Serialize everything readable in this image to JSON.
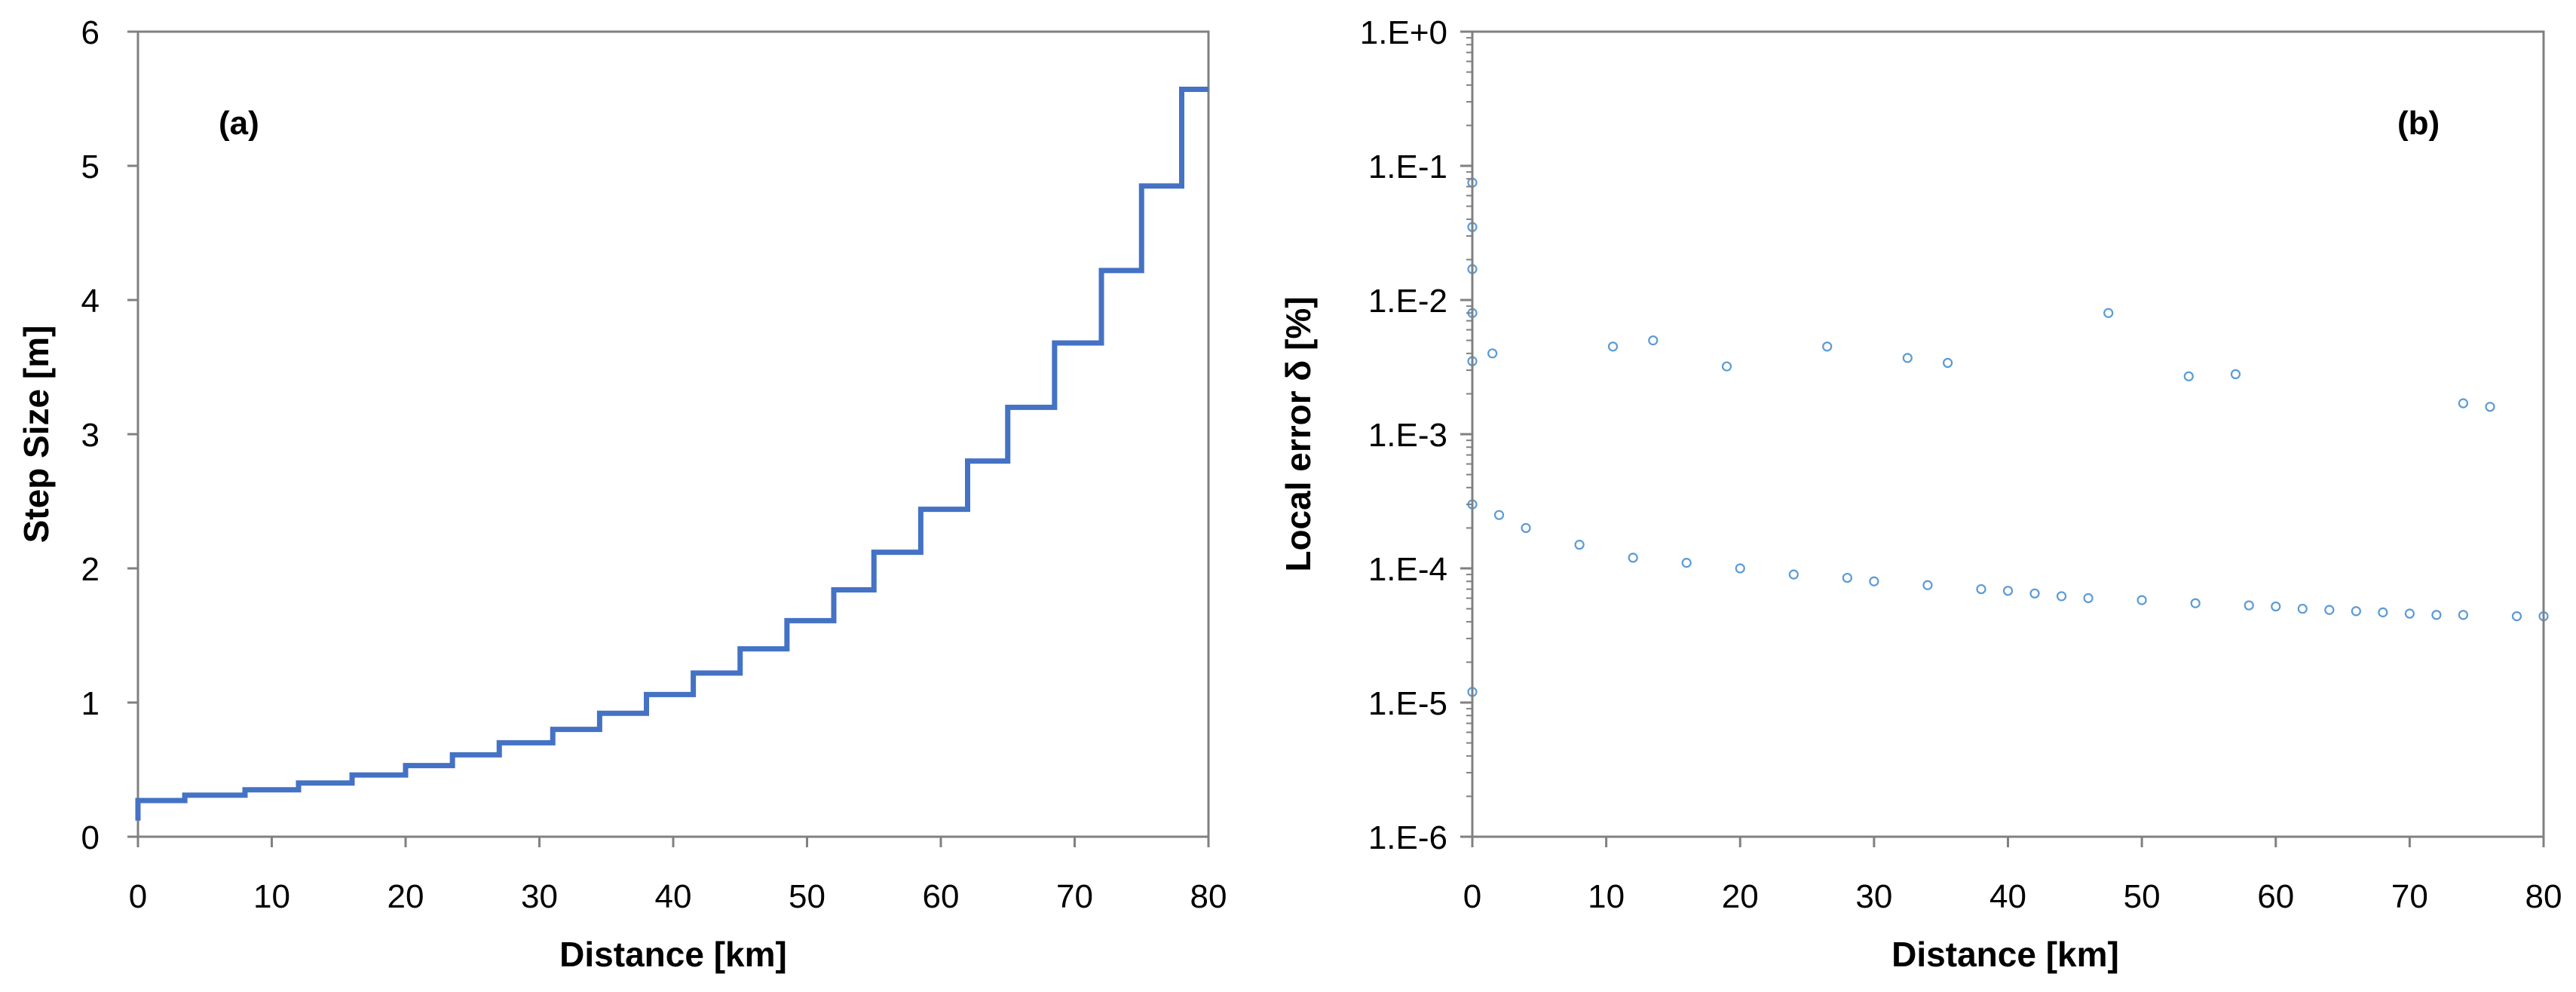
{
  "colors": {
    "line": "#4472C4",
    "marker": "#5B9BD5",
    "axis": "#808080"
  },
  "chart_data": [
    {
      "type": "line",
      "panel_label": "(a)",
      "xlabel": "Distance [km]",
      "ylabel": "Step Size [m]",
      "xlim": [
        0,
        80
      ],
      "ylim": [
        0,
        6
      ],
      "xticks": [
        0,
        10,
        20,
        30,
        40,
        50,
        60,
        70,
        80
      ],
      "yticks": [
        0,
        1,
        2,
        3,
        4,
        5,
        6
      ],
      "xtick_labels": [
        "0",
        "10",
        "20",
        "30",
        "40",
        "50",
        "60",
        "70",
        "80"
      ],
      "ytick_labels": [
        "0",
        "1",
        "2",
        "3",
        "4",
        "5",
        "6"
      ],
      "grid": false,
      "step": "post",
      "series": [
        {
          "x": [
            0,
            3.5,
            8,
            12,
            16,
            20,
            23.5,
            27,
            31,
            34.5,
            38,
            41.5,
            45,
            48.5,
            52,
            55,
            58.5,
            62,
            65,
            68.5,
            72,
            75,
            78,
            80
          ],
          "y": [
            0.27,
            0.31,
            0.35,
            0.4,
            0.46,
            0.53,
            0.61,
            0.7,
            0.8,
            0.92,
            1.06,
            1.22,
            1.4,
            1.61,
            1.84,
            2.12,
            2.44,
            2.8,
            3.2,
            3.68,
            4.22,
            4.85,
            5.57,
            5.57
          ]
        }
      ]
    },
    {
      "type": "scatter",
      "panel_label": "(b)",
      "xlabel": "Distance [km]",
      "ylabel": "Local error δ [%]",
      "xlim": [
        0,
        80
      ],
      "ylim": [
        1e-06,
        1
      ],
      "yscale": "log",
      "xticks": [
        0,
        10,
        20,
        30,
        40,
        50,
        60,
        70,
        80
      ],
      "xtick_labels": [
        "0",
        "10",
        "20",
        "30",
        "40",
        "50",
        "60",
        "70",
        "80"
      ],
      "yticks": [
        1e-06,
        1e-05,
        0.0001,
        0.001,
        0.01,
        0.1,
        1
      ],
      "ytick_labels": [
        "1.E-6",
        "1.E-5",
        "1.E-4",
        "1.E-3",
        "1.E-2",
        "1.E-1",
        "1.E+0"
      ],
      "grid": false,
      "marker": "open-circle",
      "series": [
        {
          "x": [
            0,
            0,
            0,
            0,
            0,
            1.5,
            10.5,
            13.5,
            19,
            26.5,
            32.5,
            35.5,
            47.5,
            53.5,
            57,
            74,
            76,
            0,
            0,
            2,
            4,
            8,
            12,
            16,
            20,
            24,
            28,
            30,
            34,
            38,
            40,
            42,
            44,
            46,
            50,
            54,
            58,
            60,
            62,
            64,
            66,
            68,
            70,
            72,
            74,
            78,
            80
          ],
          "y": [
            0.075,
            0.035,
            0.017,
            0.008,
            0.0035,
            0.004,
            0.0045,
            0.005,
            0.0032,
            0.0045,
            0.0037,
            0.0034,
            0.008,
            0.0027,
            0.0028,
            0.0017,
            0.0016,
            1.2e-05,
            0.0003,
            0.00025,
            0.0002,
            0.00015,
            0.00012,
            0.00011,
            0.0001,
            9e-05,
            8.5e-05,
            8e-05,
            7.5e-05,
            7e-05,
            6.8e-05,
            6.5e-05,
            6.2e-05,
            6e-05,
            5.8e-05,
            5.5e-05,
            5.3e-05,
            5.2e-05,
            5e-05,
            4.9e-05,
            4.8e-05,
            4.7e-05,
            4.6e-05,
            4.5e-05,
            4.5e-05,
            4.4e-05,
            4.4e-05
          ]
        }
      ]
    }
  ]
}
